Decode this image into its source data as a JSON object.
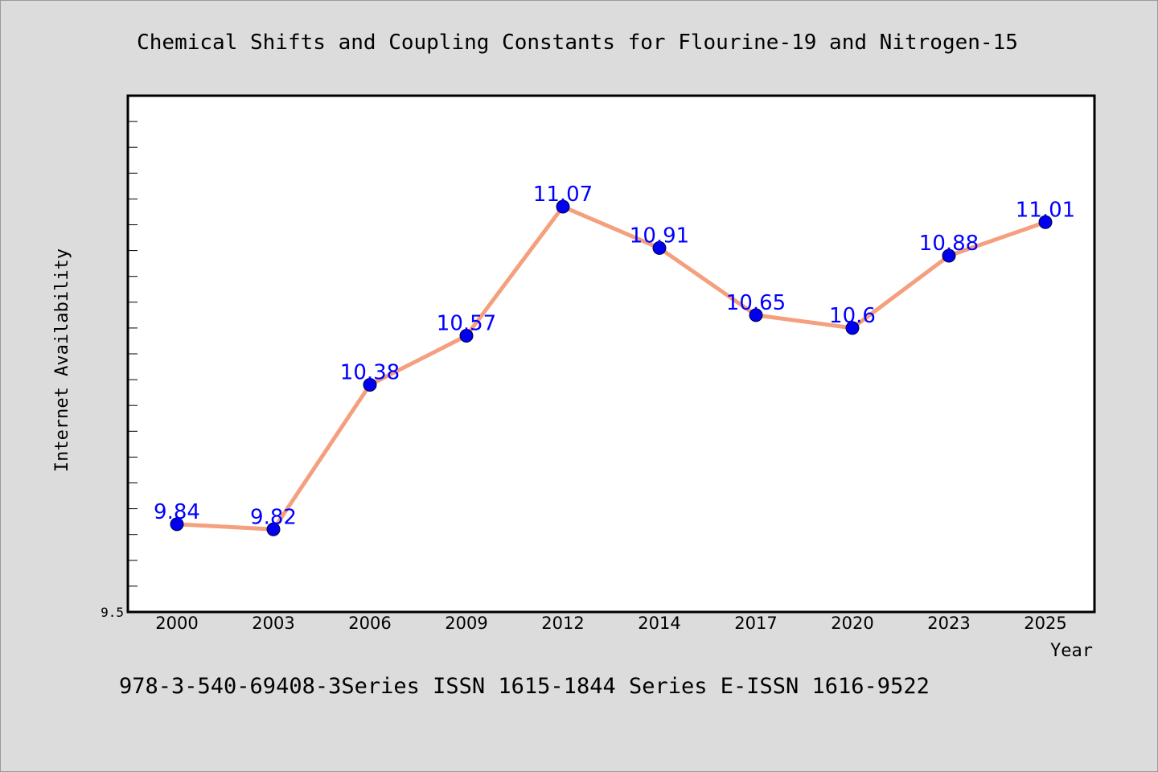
{
  "chart_data": {
    "type": "line",
    "title": "Chemical Shifts and Coupling Constants for Flourine-19 and Nitrogen-15",
    "xlabel": "Year",
    "ylabel": "Internet Availability",
    "categories": [
      "2000",
      "2003",
      "2006",
      "2009",
      "2012",
      "2014",
      "2017",
      "2020",
      "2023",
      "2025"
    ],
    "series": [
      {
        "values": [
          9.84,
          9.82,
          10.38,
          10.57,
          11.07,
          10.91,
          10.65,
          10.6,
          10.88,
          11.01
        ],
        "data_labels": [
          "9.84",
          "9.82",
          "10.38",
          "10.57",
          "11.07",
          "10.91",
          "10.65",
          "10.6",
          "10.88",
          "11.01"
        ]
      }
    ],
    "ylim": [
      9.5,
      11.5
    ],
    "ytick_labels": [
      "9.5"
    ],
    "grid": false,
    "legend": "none",
    "colors": {
      "line": "#f4a07e",
      "marker": "#0000ee",
      "data_label": "#0000ff",
      "plot_background": "#ffffff",
      "page_background": "#dcdcdc"
    }
  },
  "footer": {
    "text": "978-3-540-69408-3Series ISSN 1615-1844 Series E-ISSN 1616-9522"
  }
}
